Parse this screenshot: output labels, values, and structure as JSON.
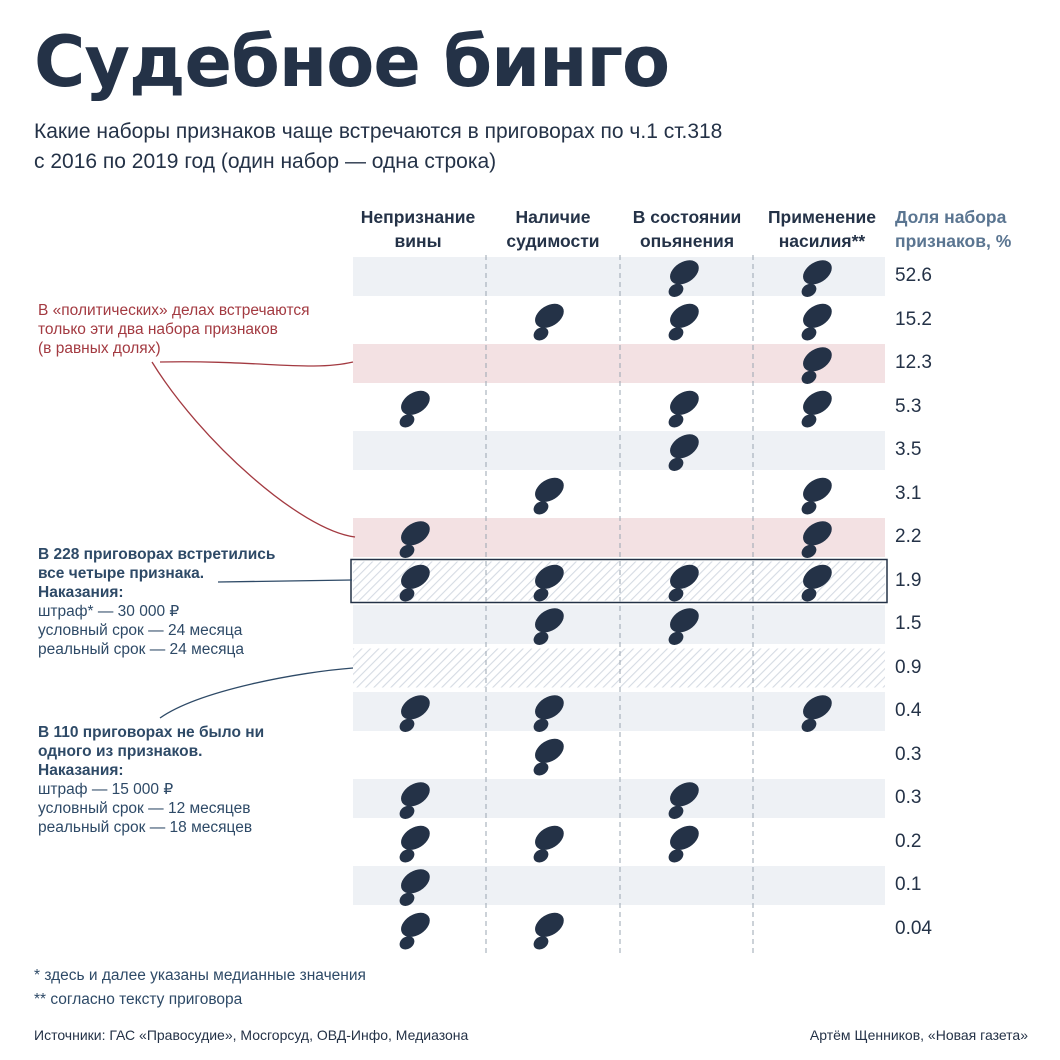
{
  "title": "Судебное бинго",
  "subtitle": [
    "Какие наборы признаков чаще встречаются в приговорах по ч.1 ст.318",
    "с 2016 по 2019 год (один набор — одна строка)"
  ],
  "chart_data": {
    "type": "table",
    "columns": [
      {
        "line1": "Непризнание",
        "line2": "вины"
      },
      {
        "line1": "Наличие",
        "line2": "судимости"
      },
      {
        "line1": "В состоянии",
        "line2": "опьянения"
      },
      {
        "line1": "Применение",
        "line2": "насилия**"
      }
    ],
    "share_header": [
      "Доля набора",
      "признаков, %"
    ],
    "rows": [
      {
        "share": "52.6",
        "flags": [
          0,
          0,
          1,
          1
        ]
      },
      {
        "share": "15.2",
        "flags": [
          0,
          1,
          1,
          1
        ]
      },
      {
        "share": "12.3",
        "flags": [
          0,
          0,
          0,
          1
        ],
        "highlight": "political"
      },
      {
        "share": "5.3",
        "flags": [
          1,
          0,
          1,
          1
        ]
      },
      {
        "share": "3.5",
        "flags": [
          0,
          0,
          1,
          0
        ]
      },
      {
        "share": "3.1",
        "flags": [
          0,
          1,
          0,
          1
        ]
      },
      {
        "share": "2.2",
        "flags": [
          1,
          0,
          0,
          1
        ],
        "highlight": "political"
      },
      {
        "share": "1.9",
        "flags": [
          1,
          1,
          1,
          1
        ],
        "highlight": "all-four"
      },
      {
        "share": "1.5",
        "flags": [
          0,
          1,
          1,
          0
        ]
      },
      {
        "share": "0.9",
        "flags": [
          0,
          0,
          0,
          0
        ],
        "highlight": "none"
      },
      {
        "share": "0.4",
        "flags": [
          1,
          1,
          0,
          1
        ]
      },
      {
        "share": "0.3",
        "flags": [
          0,
          1,
          0,
          0
        ]
      },
      {
        "share": "0.3",
        "flags": [
          1,
          0,
          1,
          0
        ]
      },
      {
        "share": "0.2",
        "flags": [
          1,
          1,
          1,
          0
        ]
      },
      {
        "share": "0.1",
        "flags": [
          1,
          0,
          0,
          0
        ]
      },
      {
        "share": "0.04",
        "flags": [
          1,
          1,
          0,
          0
        ]
      }
    ],
    "colors": {
      "stripe": "#eef1f5",
      "political": "#f3e1e3",
      "hatch": "#d5dbe3",
      "icon": "#243247",
      "red": "#a33a41",
      "blue": "#2e4a67"
    }
  },
  "annotations": {
    "political": [
      "В «политических» делах встречаются",
      "только эти два набора признаков",
      "(в равных долях)"
    ],
    "all_four": {
      "bold": [
        "В 228 приговорах встретились",
        "все четыре признака.",
        "Наказания:"
      ],
      "normal": [
        "штраф* — 30 000 ₽",
        "условный срок — 24 месяца",
        "реальный срок — 24 месяца"
      ]
    },
    "none": {
      "bold": [
        "В 110 приговорах не было ни",
        "одного из признаков.",
        "Наказания:"
      ],
      "normal": [
        "штраф — 15 000 ₽",
        "условный срок — 12 месяцев",
        "реальный срок — 18 месяцев"
      ]
    }
  },
  "footnotes": [
    "* здесь и далее указаны медианные значения",
    "** согласно тексту приговора"
  ],
  "sources": "Источники: ГАС «Правосудие», Мосгорсуд, ОВД-Инфо, Медиазона",
  "author": "Артём Щенников, «Новая газета»",
  "icon_name": "shoe-print-icon"
}
